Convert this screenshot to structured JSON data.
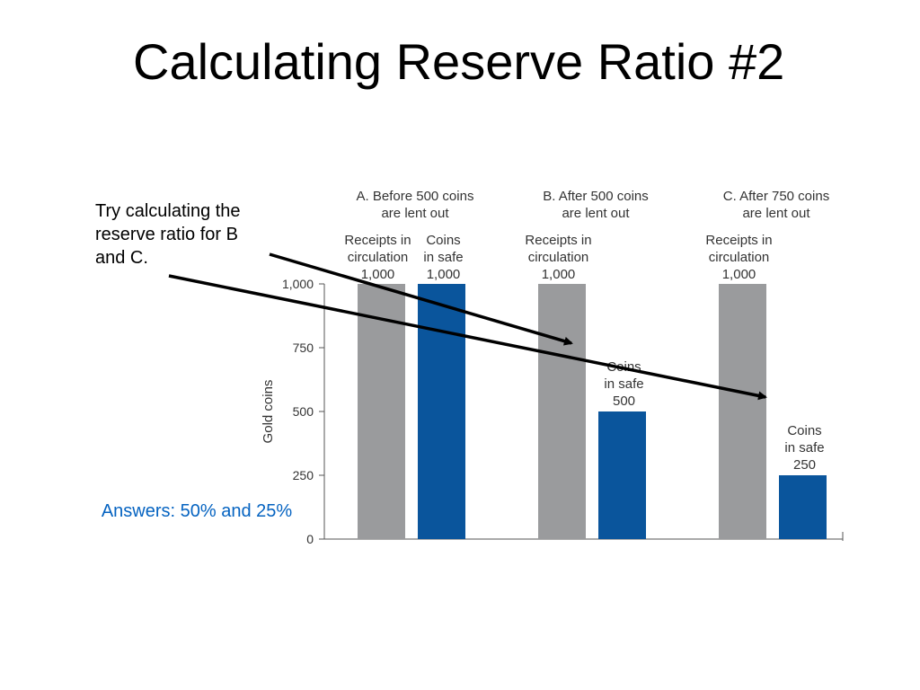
{
  "slide": {
    "title": "Calculating Reserve Ratio #2",
    "instruction": "Try calculating the reserve ratio for B and C.",
    "answer": "Answers: 50% and 25%"
  },
  "colors": {
    "receipts_bar": "#9a9b9d",
    "coins_bar": "#0a559c",
    "answer_text": "#0563c1",
    "label_text": "#333333"
  },
  "chart_data": {
    "type": "bar",
    "ylabel": "Gold coins",
    "ylim": [
      0,
      1000
    ],
    "yticks": [
      0,
      250,
      500,
      750,
      1000
    ],
    "ytick_labels": [
      "0",
      "250",
      "500",
      "750",
      "1,000"
    ],
    "groups": [
      {
        "title": [
          "A. Before 500 coins",
          "are lent out"
        ],
        "bars": [
          {
            "kind": "receipts",
            "value": 1000,
            "label": [
              "Receipts in",
              "circulation",
              "1,000"
            ]
          },
          {
            "kind": "coins",
            "value": 1000,
            "label": [
              "Coins",
              "in safe",
              "1,000"
            ]
          }
        ]
      },
      {
        "title": [
          "B. After 500 coins",
          "are lent out"
        ],
        "bars": [
          {
            "kind": "receipts",
            "value": 1000,
            "label": [
              "Receipts in",
              "circulation",
              "1,000"
            ]
          },
          {
            "kind": "coins",
            "value": 500,
            "label": [
              "Coins",
              "in safe",
              "500"
            ]
          }
        ]
      },
      {
        "title": [
          "C. After 750 coins",
          "are lent out"
        ],
        "bars": [
          {
            "kind": "receipts",
            "value": 1000,
            "label": [
              "Receipts in",
              "circulation",
              "1,000"
            ]
          },
          {
            "kind": "coins",
            "value": 250,
            "label": [
              "Coins",
              "in safe",
              "250"
            ]
          }
        ]
      }
    ]
  }
}
